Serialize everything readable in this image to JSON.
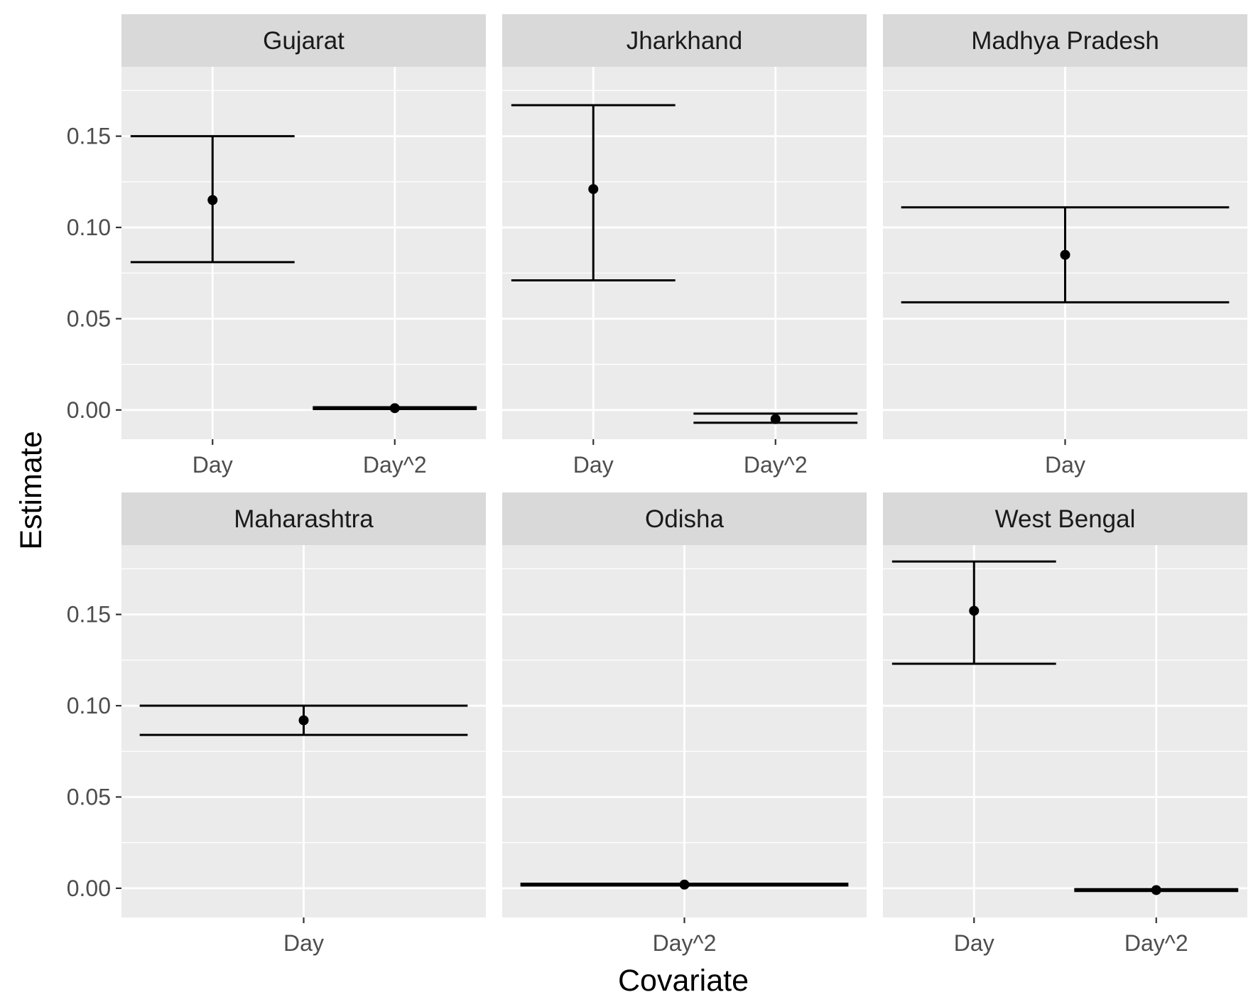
{
  "colors": {
    "panel_background": "#EBEBEB",
    "strip_background": "#D9D9D9",
    "grid_line": "#FFFFFF",
    "mark": "#000000",
    "tick_text": "#4D4D4D",
    "strip_text": "#1A1A1A"
  },
  "chart_data": {
    "type": "errorbar",
    "xlabel": "Covariate",
    "ylabel": "Estimate",
    "ylim": [
      -0.016,
      0.188
    ],
    "y_ticks": [
      0.0,
      0.05,
      0.1,
      0.15
    ],
    "y_tick_labels": [
      "0.00",
      "0.05",
      "0.10",
      "0.15"
    ],
    "grid": true,
    "facet_layout": "2 rows x 3 columns",
    "facets": [
      {
        "name": "Gujarat",
        "categories": [
          "Day",
          "Day^2"
        ],
        "points": [
          {
            "x": "Day",
            "estimate": 0.115,
            "lower": 0.081,
            "upper": 0.15
          },
          {
            "x": "Day^2",
            "estimate": 0.001,
            "lower": 0.0005,
            "upper": 0.0015
          }
        ]
      },
      {
        "name": "Jharkhand",
        "categories": [
          "Day",
          "Day^2"
        ],
        "points": [
          {
            "x": "Day",
            "estimate": 0.121,
            "lower": 0.071,
            "upper": 0.167
          },
          {
            "x": "Day^2",
            "estimate": -0.005,
            "lower": -0.007,
            "upper": -0.002
          }
        ]
      },
      {
        "name": "Madhya Pradesh",
        "categories": [
          "Day"
        ],
        "points": [
          {
            "x": "Day",
            "estimate": 0.085,
            "lower": 0.059,
            "upper": 0.111
          }
        ]
      },
      {
        "name": "Maharashtra",
        "categories": [
          "Day"
        ],
        "points": [
          {
            "x": "Day",
            "estimate": 0.092,
            "lower": 0.084,
            "upper": 0.1
          }
        ]
      },
      {
        "name": "Odisha",
        "categories": [
          "Day^2"
        ],
        "points": [
          {
            "x": "Day^2",
            "estimate": 0.002,
            "lower": 0.0015,
            "upper": 0.0025
          }
        ]
      },
      {
        "name": "West Bengal",
        "categories": [
          "Day",
          "Day^2"
        ],
        "points": [
          {
            "x": "Day",
            "estimate": 0.152,
            "lower": 0.123,
            "upper": 0.179
          },
          {
            "x": "Day^2",
            "estimate": -0.001,
            "lower": -0.0015,
            "upper": -0.0005
          }
        ]
      }
    ]
  }
}
